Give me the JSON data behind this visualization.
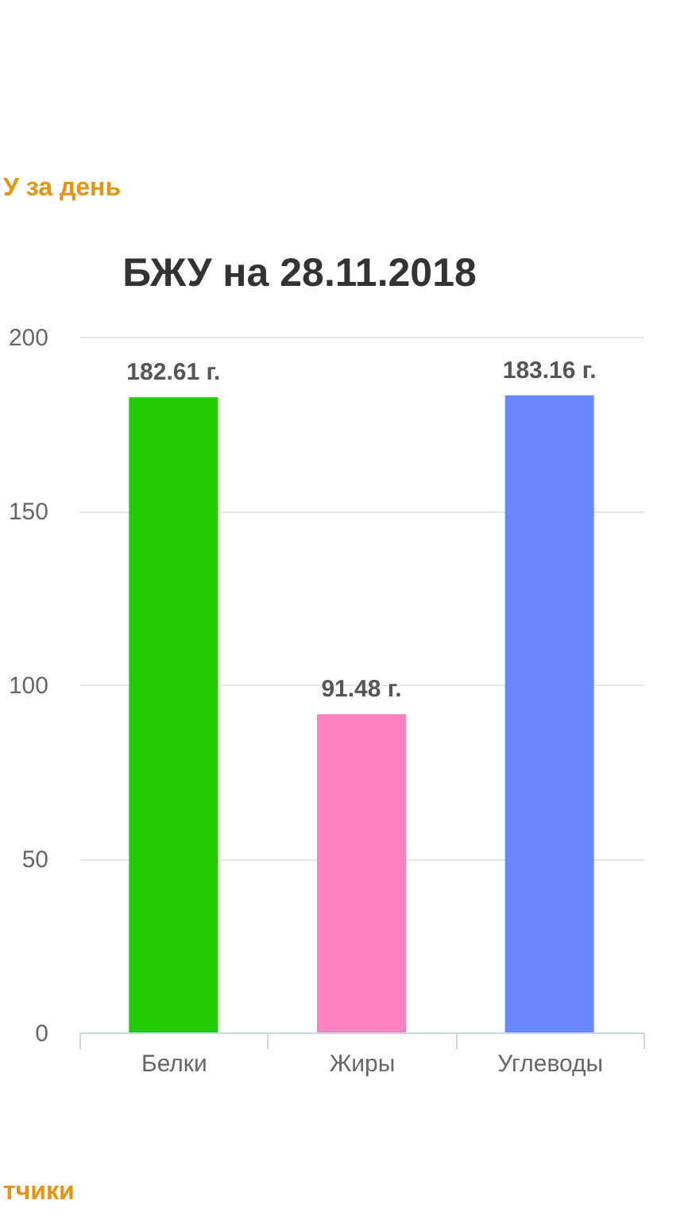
{
  "chart_data": {
    "type": "bar",
    "title": "БЖУ на 28.11.2018",
    "categories": [
      "Белки",
      "Жиры",
      "Углеводы"
    ],
    "values": [
      182.61,
      91.48,
      183.16
    ],
    "colors": [
      "#22cc00",
      "#ff80c0",
      "#6a87fc"
    ],
    "value_labels": [
      "182.61 г.",
      "91.48 г.",
      "183.16 г."
    ],
    "ylim": [
      0,
      200
    ],
    "yticks": [
      0,
      50,
      100,
      150,
      200
    ],
    "grid": "y",
    "annotations": [
      "У за день",
      "тчики"
    ]
  }
}
